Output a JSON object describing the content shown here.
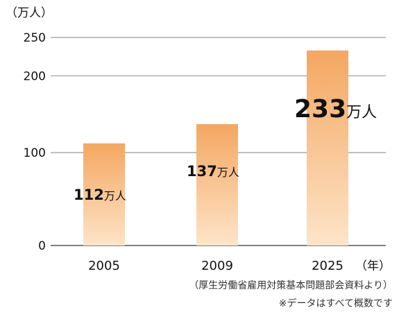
{
  "chart_data": {
    "type": "bar",
    "y_unit_label": "（万人）",
    "x_unit_label": "（年）",
    "categories": [
      "2005",
      "2009",
      "2025"
    ],
    "values": [
      112,
      137,
      233
    ],
    "data_labels": [
      {
        "number": "112",
        "unit": "万人"
      },
      {
        "number": "137",
        "unit": "万人"
      },
      {
        "number": "233",
        "unit": "万人"
      }
    ],
    "y_ticks": [
      0,
      100,
      200,
      250
    ],
    "ylim": [
      0,
      250
    ],
    "scale": "piecewise: 0-100 compressed, 100-250 linear",
    "gridlines": true,
    "bar_gradient": [
      "#f4a761",
      "#fde4c8"
    ],
    "notes": [
      "（厚生労働省雇用対策基本問題部会資料より）",
      "※データはすべて概数です"
    ]
  }
}
